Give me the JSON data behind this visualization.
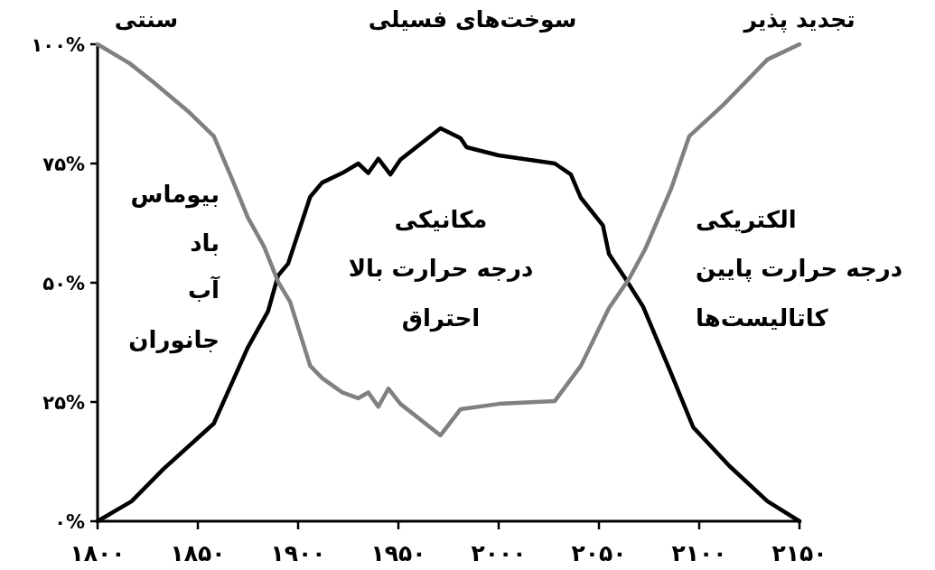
{
  "chart_data": {
    "type": "line",
    "series": [
      {
        "color": "#000000",
        "x": [
          1800,
          1817,
          1833,
          1858,
          1867,
          1875,
          1885,
          1890,
          1895,
          1906,
          1912,
          1922,
          1930,
          1935,
          1940,
          1946,
          1951,
          1971,
          1981,
          1984,
          2000,
          2028,
          2036,
          2041,
          2052,
          2055,
          2063,
          2072,
          2086,
          2097,
          2115,
          2134,
          2150
        ],
        "values": [
          0,
          4.2,
          11,
          20.5,
          29,
          36.5,
          44,
          51.5,
          54,
          68,
          71,
          73,
          75,
          73,
          76,
          72.7,
          75.8,
          82.4,
          80.3,
          78.4,
          76.7,
          75,
          72.7,
          67.8,
          62,
          56,
          51,
          45,
          31,
          19.7,
          11.6,
          4.2,
          0
        ]
      },
      {
        "color": "#808080",
        "x": [
          1800,
          1816,
          1828,
          1845,
          1858,
          1867,
          1875,
          1883,
          1890,
          1896,
          1906,
          1912,
          1922,
          1930,
          1935,
          1940,
          1945,
          1951,
          1971,
          1981,
          2000,
          2028,
          2041,
          2055,
          2065,
          2073,
          2086,
          2095,
          2112,
          2134,
          2150
        ],
        "values": [
          100,
          96,
          92,
          86,
          80.7,
          71.8,
          63.6,
          57.6,
          50.2,
          46,
          32.6,
          30,
          27,
          25.8,
          27,
          24,
          27.8,
          24.6,
          18,
          23.5,
          24.6,
          25.2,
          32.6,
          44.7,
          50.8,
          57,
          69.7,
          80.7,
          87.3,
          96.8,
          100
        ]
      }
    ],
    "xlim": [
      1800,
      2150
    ],
    "xticks": [
      {
        "value": 1800,
        "label": "۱۸۰۰"
      },
      {
        "value": 1850,
        "label": "۱۸۵۰"
      },
      {
        "value": 1900,
        "label": "۱۹۰۰"
      },
      {
        "value": 1950,
        "label": "۱۹۵۰"
      },
      {
        "value": 2000,
        "label": "۲۰۰۰"
      },
      {
        "value": 2050,
        "label": "۲۰۵۰"
      },
      {
        "value": 2100,
        "label": "۲۱۰۰"
      },
      {
        "value": 2150,
        "label": "۲۱۵۰"
      }
    ],
    "ylim": [
      0,
      100
    ],
    "yticks": [
      {
        "value": 0,
        "label": "۰%"
      },
      {
        "value": 25,
        "label": "۲۵%"
      },
      {
        "value": 50,
        "label": "۵۰%"
      },
      {
        "value": 75,
        "label": "۷۵%"
      },
      {
        "value": 100,
        "label": "۱۰۰%"
      }
    ],
    "grid": false,
    "marker": "none",
    "line_style": "solid",
    "annotations": [
      "سنتی",
      "سوخت‌های فسیلی",
      "تجدید پذیر",
      "بیوماس",
      "باد",
      "آب",
      "جانوران",
      "مکانیکی",
      "درجه حرارت بالا",
      "احتراق",
      "الکتریکی",
      "درجه حرارت پایین",
      "کاتالیست‌ها"
    ]
  }
}
